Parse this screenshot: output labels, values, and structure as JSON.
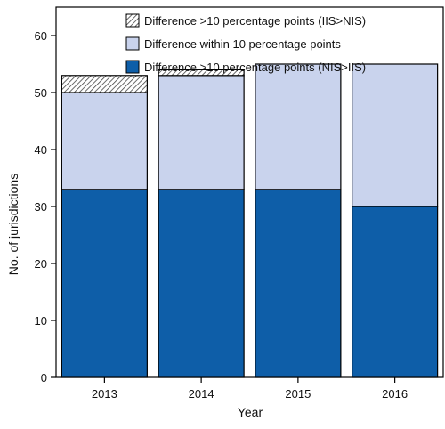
{
  "chart_data": {
    "type": "bar",
    "stacked": true,
    "categories": [
      "2013",
      "2014",
      "2015",
      "2016"
    ],
    "series": [
      {
        "name": "Difference >10 percentage points (NIS>IIS)",
        "values": [
          33,
          33,
          33,
          30
        ],
        "color": "#0e5ea8",
        "pattern": "solid"
      },
      {
        "name": "Difference within 10 percentage points",
        "values": [
          17,
          20,
          22,
          25
        ],
        "color": "#c9d3ed",
        "pattern": "solid"
      },
      {
        "name": "Difference >10 percentage points (IIS>NIS)",
        "values": [
          3,
          1,
          0,
          0
        ],
        "color": "#ffffff",
        "pattern": "hatch"
      }
    ],
    "legend_order": [
      2,
      1,
      0
    ],
    "xlabel": "Year",
    "ylabel": "No. of jurisdictions",
    "ylim": [
      0,
      65
    ],
    "yticks": [
      0,
      10,
      20,
      30,
      40,
      50,
      60
    ],
    "grid": false,
    "legend_position": "top-center"
  }
}
